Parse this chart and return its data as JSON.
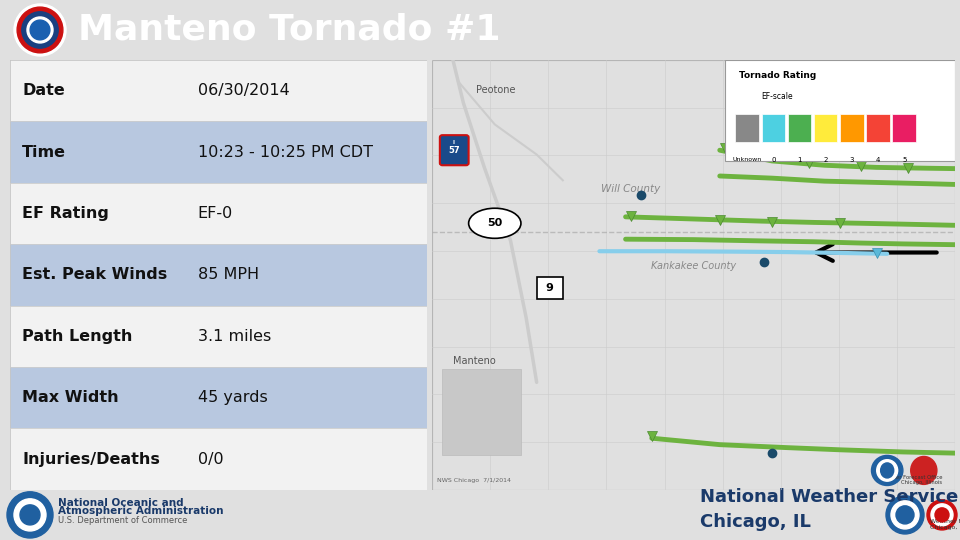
{
  "title": "Manteno Tornado #1",
  "header_bg": "#1a4a8a",
  "header_text_color": "#ffffff",
  "bg_color": "#e0e0e0",
  "table_rows": [
    {
      "label": "Date",
      "value": "06/30/2014",
      "bg": "#f2f2f2"
    },
    {
      "label": "Time",
      "value": "10:23 - 10:25 PM CDT",
      "bg": "#b8c8e0"
    },
    {
      "label": "EF Rating",
      "value": "EF-0",
      "bg": "#f2f2f2"
    },
    {
      "label": "Est. Peak Winds",
      "value": "85 MPH",
      "bg": "#b8c8e0"
    },
    {
      "label": "Path Length",
      "value": "3.1 miles",
      "bg": "#f2f2f2"
    },
    {
      "label": "Max Width",
      "value": "45 yards",
      "bg": "#b8c8e0"
    },
    {
      "label": "Injuries/Deaths",
      "value": "0/0",
      "bg": "#f2f2f2"
    }
  ],
  "map_bg": "#f8f8f8",
  "noaa_text_line1": "National Oceanic and",
  "noaa_text_line2": "Atmospheric Administration",
  "noaa_text_line3": "U.S. Department of Commerce",
  "nws_text": "National Weather Service\nChicago, IL",
  "nws_text_color": "#1a3a6a",
  "legend_colors": [
    "#888888",
    "#4dd0e1",
    "#4caf50",
    "#ffeb3b",
    "#ff9800",
    "#f44336",
    "#e91e63"
  ],
  "legend_labels": [
    "Unknown",
    "0",
    "1",
    "2",
    "3",
    "4",
    "5"
  ],
  "track_green": "#6db33f",
  "track_light_blue": "#87ceeb",
  "grid_color": "#cccccc",
  "road_color": "#cccccc"
}
